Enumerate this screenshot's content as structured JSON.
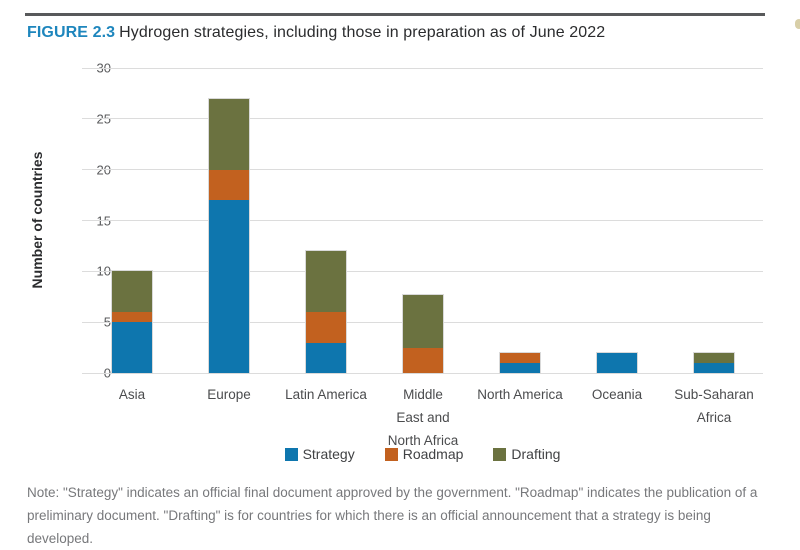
{
  "figure": {
    "label": "FIGURE 2.3",
    "title": "Hydrogen strategies, including those in preparation as of June 2022"
  },
  "chart_data": {
    "type": "bar",
    "stacked": true,
    "title": "Hydrogen strategies, including those in preparation as of June 2022",
    "categories": [
      "Asia",
      "Europe",
      "Latin America",
      "Middle East and North Africa",
      "North America",
      "Oceania",
      "Sub-Saharan Africa"
    ],
    "category_lines": [
      [
        "Asia"
      ],
      [
        "Europe"
      ],
      [
        "Latin America"
      ],
      [
        "Middle",
        "East and",
        "North Africa"
      ],
      [
        "North America"
      ],
      [
        "Oceania"
      ],
      [
        "Sub-Saharan",
        "Africa"
      ]
    ],
    "series": [
      {
        "name": "Strategy",
        "color": "#0e76ae",
        "values": [
          5,
          17,
          3,
          0,
          1,
          2,
          1
        ]
      },
      {
        "name": "Roadmap",
        "color": "#c2611f",
        "values": [
          1,
          3,
          3,
          2.5,
          1,
          0,
          0
        ]
      },
      {
        "name": "Drafting",
        "color": "#6b7240",
        "values": [
          4,
          7,
          6,
          5.2,
          0,
          0,
          1
        ]
      }
    ],
    "xlabel": "",
    "ylabel": "Number of countries",
    "ylim": [
      0,
      30
    ],
    "yticks": [
      0,
      5,
      10,
      15,
      20,
      25,
      30
    ],
    "grid": true,
    "legend_position": "bottom"
  },
  "note": "Note: \"Strategy\" indicates an official final document approved by the government. \"Roadmap\" indicates the publication of a preliminary document. \"Drafting\" is for countries for which there is an official announcement that a strategy is being developed."
}
